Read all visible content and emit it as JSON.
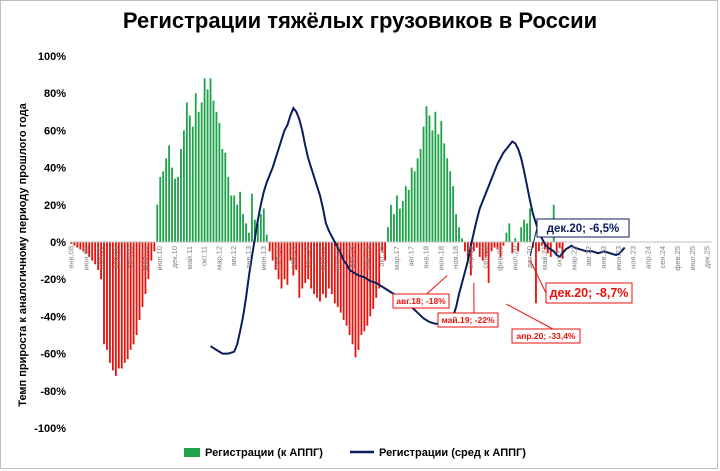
{
  "chart_data": {
    "type": "bar",
    "title": "Регистрации тяжёлых грузовиков в России",
    "ylabel": "Темп прироста к аналогичному периоду прошлого года",
    "ylim": [
      -100,
      100
    ],
    "yticks": [
      -100,
      -80,
      -60,
      -40,
      -20,
      0,
      20,
      40,
      60,
      80,
      100
    ],
    "ytick_labels": [
      "-100%",
      "-80%",
      "-60%",
      "-40%",
      "-20%",
      "0%",
      "20%",
      "40%",
      "60%",
      "80%",
      "100%"
    ],
    "x_start": "янв.08",
    "x_tick_labels": [
      "янв.08",
      "июн.08",
      "ноя.08",
      "апр.09",
      "сен.09",
      "фев.10",
      "июл.10",
      "дек.10",
      "май.11",
      "окт.11",
      "мар.12",
      "авг.12",
      "янв.13",
      "июн.13",
      "ноя.13",
      "апр.14",
      "сен.14",
      "фев.15",
      "июл.15",
      "дек.15",
      "май.16",
      "окт.16",
      "мар.17",
      "авг.17",
      "янв.18",
      "июн.18",
      "ноя.18",
      "апр.19",
      "сен.19",
      "фев.20",
      "июл.20",
      "дек.20",
      "май.21",
      "окт.21",
      "мар.22",
      "авг.22",
      "янв.23",
      "июн.23",
      "ноя.23",
      "апр.24",
      "сен.24",
      "фев.25",
      "июл.25",
      "дек.25"
    ],
    "grid": false,
    "legend_position": "bottom",
    "positive_color": "#1fa34a",
    "negative_color": "#e8120c",
    "line_color": "#0b1d5c",
    "series": [
      {
        "name": "Регистрации (к АППГ)",
        "type": "bar",
        "values": [
          -1,
          -2,
          -3,
          -4,
          -5,
          -6,
          -8,
          -10,
          -12,
          -15,
          -20,
          -55,
          -58,
          -65,
          -69,
          -72,
          -68,
          -68,
          -65,
          -63,
          -58,
          -55,
          -50,
          -42,
          -35,
          -28,
          -20,
          -10,
          -5,
          20,
          35,
          38,
          45,
          52,
          40,
          34,
          35,
          50,
          60,
          75,
          68,
          62,
          80,
          70,
          75,
          88,
          82,
          88,
          76,
          70,
          64,
          50,
          48,
          35,
          25,
          25,
          20,
          27,
          15,
          10,
          5,
          26,
          12,
          10,
          15,
          18,
          4,
          -5,
          -10,
          -15,
          -20,
          -25,
          -20,
          -23,
          -10,
          -18,
          -15,
          -30,
          -25,
          -22,
          -20,
          -25,
          -28,
          -30,
          -32,
          -28,
          -30,
          -25,
          -28,
          -33,
          -35,
          -38,
          -42,
          -45,
          -50,
          -55,
          -62,
          -58,
          -50,
          -48,
          -45,
          -40,
          -36,
          -30,
          -25,
          -5,
          -10,
          8,
          20,
          15,
          25,
          18,
          22,
          30,
          28,
          40,
          38,
          45,
          50,
          62,
          73,
          68,
          60,
          70,
          58,
          65,
          53,
          45,
          38,
          30,
          15,
          8,
          2,
          -5,
          -10,
          -18,
          -5,
          -3,
          -8,
          -10,
          -8,
          -22,
          -5,
          -3,
          -4,
          -8,
          -2,
          5,
          10,
          -6,
          2,
          -5,
          8,
          12,
          10,
          18,
          -3,
          -33,
          -5,
          -2,
          -4,
          -6,
          -8,
          20,
          -6,
          -3,
          -9
        ],
        "color_positive": "#1fa34a",
        "color_negative": "#e8120c"
      },
      {
        "name": "Регистрации (сред к АППГ)",
        "type": "line",
        "color": "#0b1d5c",
        "points": [
          [
            47,
            -56
          ],
          [
            49,
            -58
          ],
          [
            51,
            -60
          ],
          [
            53,
            -60
          ],
          [
            55,
            -59
          ],
          [
            56,
            -55
          ],
          [
            57,
            -48
          ],
          [
            58,
            -40
          ],
          [
            59,
            -30
          ],
          [
            60,
            -18
          ],
          [
            61,
            -8
          ],
          [
            62,
            2
          ],
          [
            63,
            12
          ],
          [
            64,
            20
          ],
          [
            65,
            27
          ],
          [
            66,
            32
          ],
          [
            67,
            36
          ],
          [
            68,
            40
          ],
          [
            69,
            45
          ],
          [
            70,
            50
          ],
          [
            71,
            55
          ],
          [
            72,
            60
          ],
          [
            73,
            63
          ],
          [
            74,
            68
          ],
          [
            75,
            72
          ],
          [
            76,
            70
          ],
          [
            77,
            66
          ],
          [
            78,
            60
          ],
          [
            79,
            52
          ],
          [
            80,
            45
          ],
          [
            81,
            40
          ],
          [
            82,
            35
          ],
          [
            83,
            30
          ],
          [
            84,
            25
          ],
          [
            85,
            18
          ],
          [
            86,
            10
          ],
          [
            87,
            6
          ],
          [
            88,
            3
          ],
          [
            89,
            0
          ],
          [
            90,
            -3
          ],
          [
            91,
            -6
          ],
          [
            92,
            -10
          ],
          [
            93,
            -12
          ],
          [
            94,
            -15
          ],
          [
            95,
            -16
          ],
          [
            96,
            -17
          ],
          [
            97,
            -18
          ],
          [
            99,
            -19
          ],
          [
            101,
            -21
          ],
          [
            103,
            -22
          ],
          [
            105,
            -24
          ],
          [
            107,
            -26
          ],
          [
            109,
            -28
          ],
          [
            111,
            -30
          ],
          [
            113,
            -32
          ],
          [
            115,
            -35
          ],
          [
            117,
            -38
          ],
          [
            119,
            -41
          ],
          [
            121,
            -43
          ],
          [
            123,
            -44
          ],
          [
            126,
            -44
          ],
          [
            128,
            -43
          ],
          [
            129,
            -40
          ],
          [
            130,
            -35
          ],
          [
            131,
            -28
          ],
          [
            132,
            -22
          ],
          [
            133,
            -16
          ],
          [
            134,
            -10
          ],
          [
            135,
            -2
          ],
          [
            136,
            5
          ],
          [
            137,
            12
          ],
          [
            138,
            18
          ],
          [
            139,
            22
          ],
          [
            140,
            26
          ],
          [
            141,
            30
          ],
          [
            142,
            34
          ],
          [
            143,
            38
          ],
          [
            144,
            42
          ],
          [
            145,
            45
          ],
          [
            146,
            48
          ],
          [
            147,
            50
          ],
          [
            148,
            52
          ],
          [
            149,
            54
          ],
          [
            150,
            53
          ],
          [
            151,
            50
          ],
          [
            152,
            45
          ],
          [
            153,
            38
          ],
          [
            154,
            30
          ],
          [
            155,
            22
          ],
          [
            156,
            15
          ],
          [
            157,
            10
          ],
          [
            158,
            5
          ],
          [
            159,
            2
          ],
          [
            160,
            -1
          ],
          [
            161,
            -3
          ],
          [
            162,
            -4
          ],
          [
            163,
            -5
          ],
          [
            164,
            -7
          ],
          [
            165,
            -8
          ],
          [
            166,
            -6
          ],
          [
            167,
            -4
          ],
          [
            168,
            -3
          ],
          [
            169,
            -2
          ],
          [
            170,
            -3
          ],
          [
            172,
            -4
          ],
          [
            174,
            -5
          ],
          [
            176,
            -5
          ],
          [
            178,
            -6
          ],
          [
            180,
            -5
          ],
          [
            182,
            -6
          ],
          [
            184,
            -7
          ],
          [
            185,
            -6.5
          ],
          [
            187,
            -3
          ]
        ]
      }
    ],
    "annotations": [
      {
        "text": "дек.20; -6,5%",
        "style": "line"
      },
      {
        "text": "дек.20; -8,7%",
        "style": "bar"
      },
      {
        "text": "авг.18; -18%",
        "style": "bar"
      },
      {
        "text": "май.19; -22%",
        "style": "bar"
      },
      {
        "text": "апр.20; -33,4%",
        "style": "bar"
      }
    ]
  }
}
